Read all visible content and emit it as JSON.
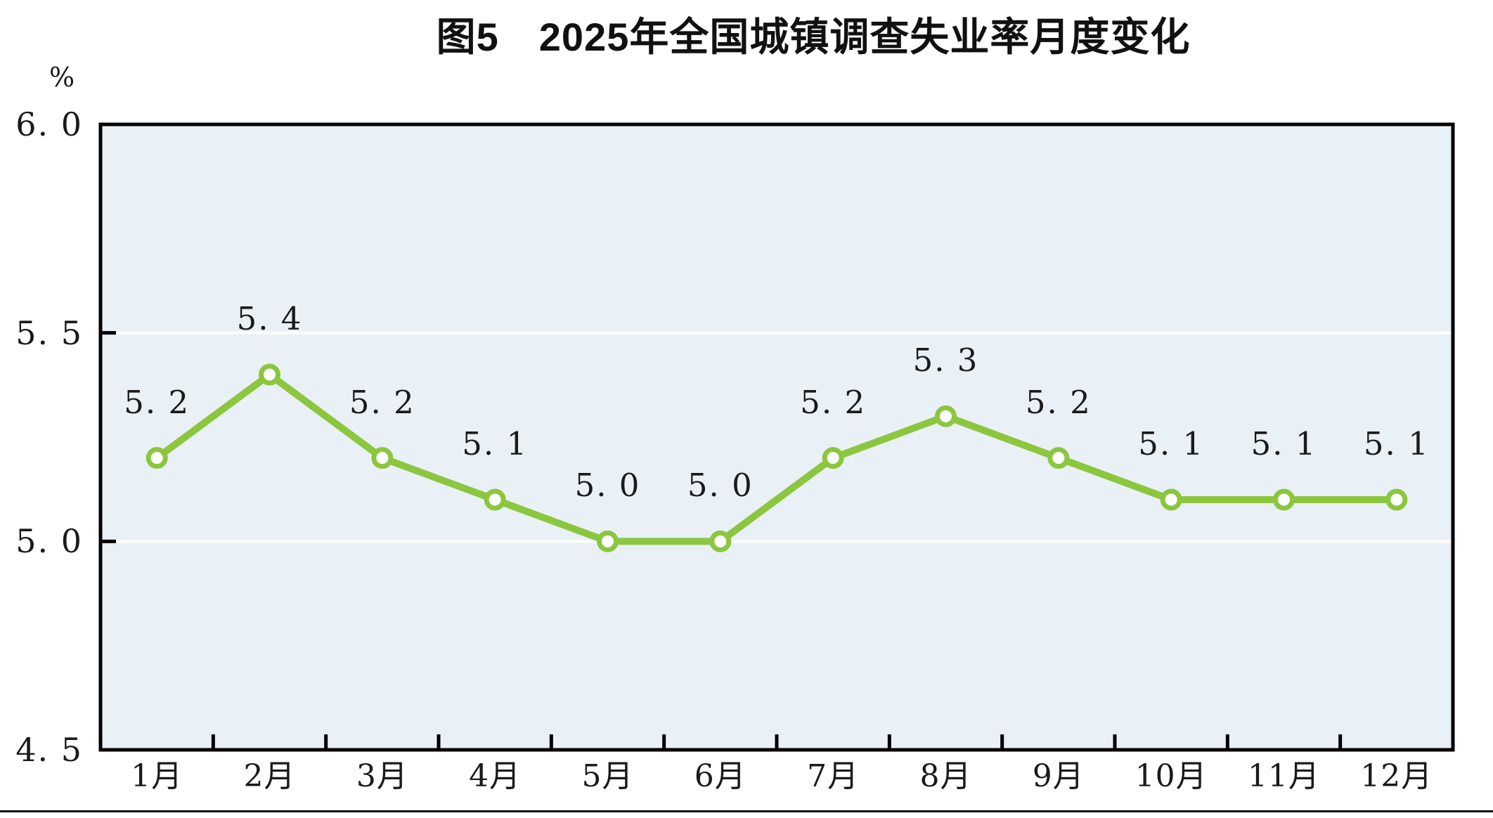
{
  "chart_data": {
    "type": "line",
    "title": "图5　2025年全国城镇调查失业率月度变化",
    "categories": [
      "1月",
      "2月",
      "3月",
      "4月",
      "5月",
      "6月",
      "7月",
      "8月",
      "9月",
      "10月",
      "11月",
      "12月"
    ],
    "values": [
      5.2,
      5.4,
      5.2,
      5.1,
      5.0,
      5.0,
      5.2,
      5.3,
      5.2,
      5.1,
      5.1,
      5.1
    ],
    "point_labels": [
      "5. 2",
      "5. 4",
      "5. 2",
      "5. 1",
      "5. 0",
      "5. 0",
      "5. 2",
      "5. 3",
      "5. 2",
      "5. 1",
      "5. 1",
      "5. 1"
    ],
    "y_unit": "%",
    "y_ticks": [
      {
        "value": 6.0,
        "label": "6. 0"
      },
      {
        "value": 5.5,
        "label": "5. 5"
      },
      {
        "value": 5.0,
        "label": "5. 0"
      },
      {
        "value": 4.5,
        "label": "4. 5"
      }
    ],
    "ylim": [
      4.5,
      6.0
    ],
    "xlabel": "",
    "ylabel": "%",
    "grid": true,
    "legend": false,
    "colors": {
      "line": "#8CC63F",
      "marker_fill": "#FFFFFF",
      "plot_bg": "#E9F1F6",
      "gridline": "#FFFFFF",
      "axis": "#000000",
      "text": "#1A1A1A"
    }
  }
}
